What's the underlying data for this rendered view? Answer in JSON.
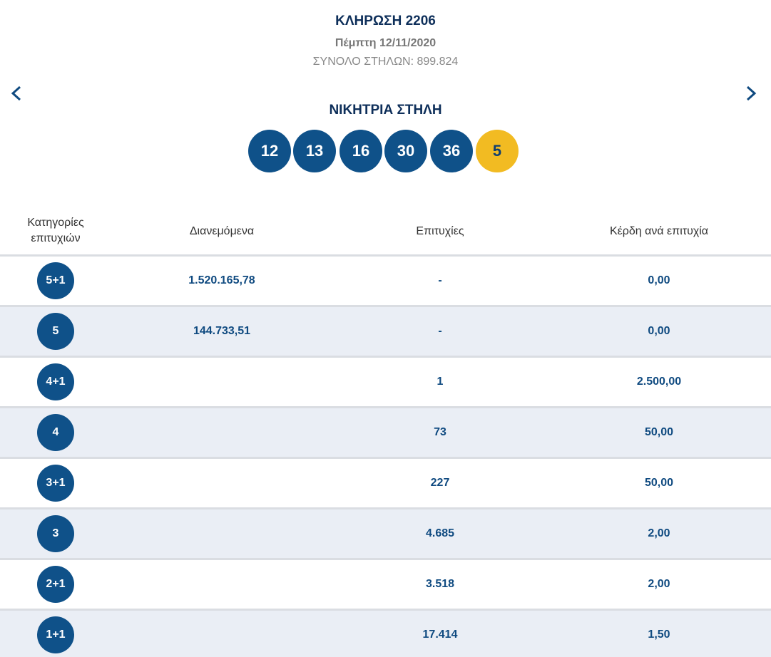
{
  "header": {
    "title": "ΚΛΗΡΩΣΗ 2206",
    "date": "Πέμπτη 12/11/2020",
    "total": "ΣΥΝΟΛΟ ΣΤΗΛΩΝ: 899.824"
  },
  "winning": {
    "title": "ΝΙΚΗΤΡΙΑ ΣΤΗΛΗ",
    "numbers": [
      "12",
      "13",
      "16",
      "30",
      "36"
    ],
    "joker": "5"
  },
  "table": {
    "columns": [
      "Κατηγορίες επιτυχιών",
      "Διανεμόμενα",
      "Επιτυχίες",
      "Κέρδη ανά επιτυχία"
    ],
    "rows": [
      {
        "category": "5+1",
        "distributed": "1.520.165,78",
        "winners": "-",
        "prize": "0,00"
      },
      {
        "category": "5",
        "distributed": "144.733,51",
        "winners": "-",
        "prize": "0,00"
      },
      {
        "category": "4+1",
        "winners": "1",
        "prize": "2.500,00"
      },
      {
        "category": "4",
        "winners": "73",
        "prize": "50,00"
      },
      {
        "category": "3+1",
        "winners": "227",
        "prize": "50,00"
      },
      {
        "category": "3",
        "winners": "4.685",
        "prize": "2,00"
      },
      {
        "category": "2+1",
        "winners": "3.518",
        "prize": "2,00"
      },
      {
        "category": "1+1",
        "winners": "17.414",
        "prize": "1,50"
      }
    ]
  }
}
